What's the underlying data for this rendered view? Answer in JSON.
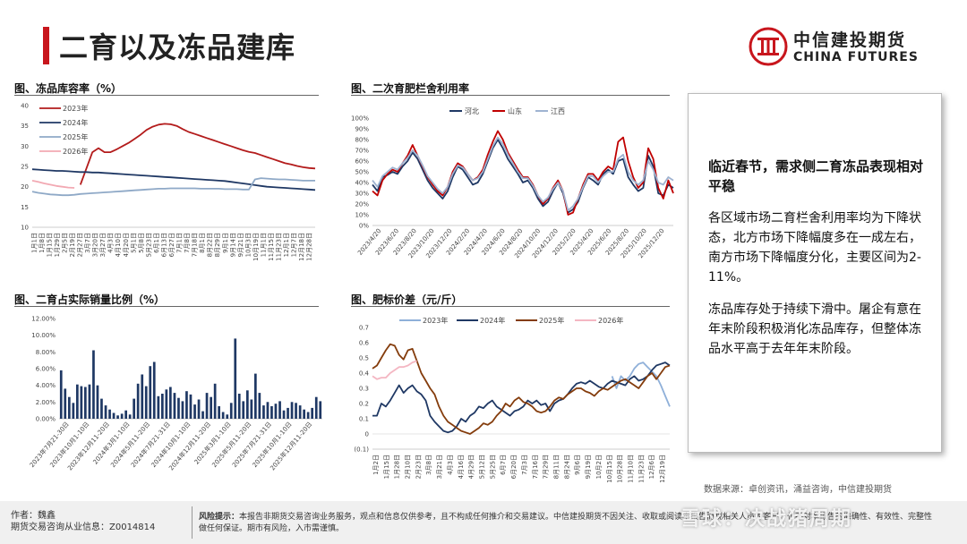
{
  "page": {
    "title": "二育以及冻品建库",
    "logo_cn": "中信建投期货",
    "logo_en": "CHINA FUTURES",
    "watermark": "雪球：决战猪周期"
  },
  "textbox": {
    "heading": "临近春节，需求侧二育冻品表现相对平稳",
    "para1": "各区域市场二育栏舍利用率均为下降状态，北方市场下降幅度多在一成左右，南方市场下降幅度分化，主要区间为2-11%。",
    "para2": "冻品库存处于持续下滑中。屠企有意在年末阶段积极消化冻品库存，但整体冻品水平高于去年年末阶段。"
  },
  "source": "数据来源：卓创资讯，涌益咨询，中信建投期货",
  "footer": {
    "author": "作者：魏鑫",
    "license": "期货交易咨询从业信息：Z0014814",
    "risk_label": "风险提示：",
    "risk_text": "本报告非期货交易咨询业务服务，观点和信息仅供参考，且不构成任何推介和交易建议。中信建投期货不因关注、收取或阅读本报告而视相关人员为客户，也不对本报告的准确性、有效性、完整性做任何保证。期市有风险，入市需谨慎。"
  },
  "colors": {
    "brand_red": "#c8161d",
    "c2023": "#b31b1b",
    "c2024": "#1f3864",
    "c2025": "#8fa9c7",
    "c2026": "#f2a9b3",
    "hebei": "#1f3864",
    "shandong": "#c00000",
    "jiangxi": "#9fb3d1",
    "bar": "#1f3864",
    "p2023": "#8fb0d9",
    "p2024": "#1f3864",
    "p2025": "#843c0c",
    "p2026": "#f4b6c2"
  },
  "chart_data": [
    {
      "id": "frozen",
      "type": "line",
      "title": "图、冻品库容率（%）",
      "ylim": [
        10,
        40
      ],
      "yticks": [
        "40",
        "35",
        "30",
        "25",
        "20",
        "15",
        "10"
      ],
      "xticks": [
        "1月1日",
        "1月8日",
        "1月15日",
        "1月29日",
        "2月5日",
        "2月19日",
        "2月27日",
        "3月7日",
        "3月20日",
        "3月27日",
        "4月3日",
        "4月10日",
        "4月20日",
        "5月1日",
        "5月8日",
        "5月23日",
        "6月1日",
        "6月13日",
        "6月27日",
        "7月1日",
        "7月8日",
        "7月18日",
        "8月1日",
        "8月22日",
        "8月29日",
        "9月1日",
        "9月14日",
        "9月21日",
        "10月3日",
        "10月19日",
        "11月1日",
        "11月15日",
        "11月23日",
        "12月1日",
        "12月7日",
        "12月18日",
        "12月28日"
      ],
      "series": [
        {
          "name": "2023年",
          "values": [
            null,
            null,
            null,
            null,
            null,
            null,
            null,
            null,
            20.5,
            24.5,
            28.5,
            29.5,
            28.5,
            28.5,
            29.2,
            30.0,
            30.8,
            31.8,
            32.8,
            34.0,
            34.8,
            35.3,
            35.5,
            35.4,
            35.0,
            34.2,
            33.5,
            33.0,
            32.5,
            32.0,
            31.5,
            31.0,
            30.5,
            30.0,
            29.5,
            29.0,
            28.6,
            28.3,
            27.8,
            27.3,
            26.8,
            26.3,
            25.8,
            25.5,
            25.1,
            24.8,
            24.6,
            24.5
          ]
        },
        {
          "name": "2024年",
          "values": [
            24.3,
            24.2,
            24.1,
            24.0,
            23.9,
            23.9,
            23.8,
            23.7,
            23.6,
            23.6,
            23.5,
            23.5,
            23.4,
            23.3,
            23.2,
            23.1,
            23.0,
            22.9,
            22.8,
            22.7,
            22.6,
            22.5,
            22.4,
            22.3,
            22.2,
            22.1,
            22.0,
            21.9,
            21.8,
            21.7,
            21.6,
            21.5,
            21.4,
            21.2,
            21.0,
            20.8,
            20.6,
            20.4,
            20.2,
            20.0,
            19.9,
            19.8,
            19.7,
            19.6,
            19.5,
            19.4,
            19.3,
            19.2
          ]
        },
        {
          "name": "2025年",
          "values": [
            18.8,
            18.5,
            18.3,
            18.1,
            18.0,
            17.9,
            17.9,
            18.0,
            18.2,
            18.3,
            18.4,
            18.5,
            18.6,
            18.7,
            18.8,
            18.9,
            19.0,
            19.1,
            19.2,
            19.3,
            19.4,
            19.5,
            19.5,
            19.6,
            19.6,
            19.6,
            19.6,
            19.6,
            19.5,
            19.5,
            19.5,
            19.5,
            19.4,
            19.4,
            19.4,
            19.3,
            19.3,
            21.8,
            22.1,
            22.0,
            21.9,
            21.8,
            21.8,
            21.7,
            21.6,
            21.5,
            21.5,
            21.5
          ]
        },
        {
          "name": "2026年",
          "values": [
            21.5,
            21.2,
            20.8,
            20.5,
            20.2,
            20.0,
            19.8,
            19.7,
            null,
            null,
            null,
            null,
            null,
            null,
            null,
            null,
            null,
            null,
            null,
            null,
            null,
            null,
            null,
            null,
            null,
            null,
            null,
            null,
            null,
            null,
            null,
            null,
            null,
            null,
            null,
            null,
            null,
            null,
            null,
            null,
            null,
            null,
            null,
            null,
            null,
            null,
            null,
            null
          ]
        }
      ]
    },
    {
      "id": "secondary",
      "type": "line",
      "title": "图、二次育肥栏舍利用率",
      "ylim": [
        0,
        100
      ],
      "yticks": [
        "100%",
        "90%",
        "80%",
        "70%",
        "60%",
        "50%",
        "40%",
        "30%",
        "20%",
        "10%",
        "0%"
      ],
      "xticks": [
        "2023/4/20",
        "2023/6/20",
        "2023/8/20",
        "2023/10/20",
        "2023/12/20",
        "2024/2/20",
        "2024/4/20",
        "2024/6/20",
        "2024/8/20",
        "2024/10/20",
        "2024/12/20",
        "2025/2/20",
        "2025/4/20",
        "2025/6/20",
        "2025/8/20",
        "2025/10/20",
        "2025/12/20"
      ],
      "series": [
        {
          "name": "河北",
          "values": [
            38,
            32,
            45,
            47,
            50,
            48,
            55,
            60,
            68,
            62,
            52,
            42,
            35,
            30,
            25,
            32,
            45,
            55,
            52,
            45,
            38,
            40,
            48,
            60,
            72,
            80,
            72,
            62,
            55,
            48,
            40,
            42,
            35,
            25,
            18,
            22,
            32,
            40,
            30,
            12,
            15,
            22,
            35,
            45,
            42,
            38,
            48,
            52,
            48,
            60,
            62,
            45,
            38,
            32,
            35,
            65,
            55,
            30,
            28,
            38,
            35
          ]
        },
        {
          "name": "山东",
          "values": [
            32,
            28,
            42,
            48,
            52,
            50,
            58,
            65,
            75,
            65,
            55,
            45,
            38,
            32,
            28,
            36,
            50,
            58,
            55,
            48,
            42,
            45,
            52,
            66,
            78,
            88,
            80,
            68,
            60,
            52,
            45,
            45,
            38,
            28,
            20,
            25,
            35,
            42,
            32,
            10,
            12,
            25,
            38,
            48,
            48,
            42,
            50,
            55,
            52,
            78,
            82,
            60,
            45,
            35,
            40,
            72,
            62,
            35,
            25,
            42,
            30
          ]
        },
        {
          "name": "江西",
          "values": [
            42,
            36,
            46,
            50,
            54,
            52,
            58,
            63,
            70,
            65,
            56,
            46,
            40,
            34,
            30,
            36,
            48,
            56,
            54,
            48,
            42,
            44,
            50,
            62,
            74,
            82,
            76,
            66,
            58,
            50,
            44,
            44,
            37,
            28,
            22,
            26,
            34,
            40,
            32,
            14,
            18,
            25,
            36,
            46,
            46,
            40,
            46,
            50,
            50,
            62,
            66,
            50,
            42,
            38,
            42,
            60,
            52,
            40,
            38,
            45,
            42
          ]
        }
      ]
    },
    {
      "id": "share",
      "type": "bar",
      "title": "图、二育占实际销量比例（%）",
      "ylim": [
        0,
        12
      ],
      "yticks": [
        "12.00%",
        "10.00%",
        "8.00%",
        "6.00%",
        "4.00%",
        "2.00%",
        "0.00%"
      ],
      "xticks": [
        "2023年7月21-30日",
        "2023年10月1-10日",
        "2023年12月11-20日",
        "2024年3月1-10日",
        "2024年5月11-20日",
        "2024年7月21-31日",
        "2024年10月1-10日",
        "2024年12月11-20日",
        "2025年3月1-10日",
        "2025年5月11-20日",
        "2025年7月21-31日",
        "2025年10月1-10日",
        "2025年12月11-20日"
      ],
      "values": [
        5.8,
        3.6,
        2.6,
        1.9,
        4.1,
        3.9,
        3.8,
        4.1,
        8.2,
        4.0,
        2.4,
        1.6,
        1.1,
        0.7,
        0.4,
        0.6,
        1.0,
        0.5,
        2.4,
        4.2,
        5.3,
        3.9,
        6.3,
        6.8,
        2.7,
        3.0,
        3.5,
        3.8,
        3.1,
        2.5,
        2.1,
        3.3,
        2.9,
        1.7,
        2.3,
        0.9,
        3.1,
        2.6,
        4.2,
        1.5,
        0.8,
        0.5,
        1.9,
        9.6,
        3.0,
        2.1,
        3.4,
        2.3,
        5.4,
        3.1,
        1.6,
        2.0,
        1.5,
        1.8,
        2.1,
        1.0,
        1.3,
        2.0,
        1.9,
        1.6,
        1.1,
        0.8,
        1.3,
        2.6,
        2.1
      ]
    },
    {
      "id": "spread",
      "type": "line",
      "title": "图、肥标价差（元/斤）",
      "ylim": [
        -0.1,
        0.7
      ],
      "yticks": [
        "0.7",
        "0.6",
        "0.5",
        "0.4",
        "0.3",
        "0.2",
        "0.1",
        "0",
        "(0.1)"
      ],
      "xticks": [
        "1月2日",
        "1月15日",
        "1月28日",
        "2月10日",
        "2月23日",
        "3月8日",
        "3月21日",
        "4月3日",
        "4月16日",
        "4月29日",
        "5月12日",
        "5月25日",
        "6月7日",
        "6月20日",
        "7月3日",
        "7月16日",
        "7月29日",
        "8月11日",
        "8月24日",
        "9月6日",
        "9月19日",
        "10月2日",
        "10月15日",
        "10月28日",
        "11月10日",
        "11月23日",
        "12月6日",
        "12月19日"
      ],
      "series": [
        {
          "name": "2023年",
          "values": [
            null,
            null,
            null,
            null,
            null,
            null,
            null,
            null,
            null,
            null,
            null,
            null,
            null,
            null,
            null,
            null,
            null,
            null,
            null,
            null,
            null,
            null,
            null,
            null,
            null,
            null,
            null,
            null,
            null,
            null,
            null,
            null,
            null,
            null,
            null,
            null,
            null,
            null,
            null,
            null,
            null,
            null,
            null,
            null,
            null,
            null,
            null,
            null,
            null,
            null,
            null,
            null,
            null,
            null,
            0.38,
            0.3,
            0.38,
            0.35,
            0.38,
            0.43,
            0.46,
            0.47,
            0.44,
            0.41,
            0.38,
            0.32,
            0.25,
            0.18
          ]
        },
        {
          "name": "2024年",
          "values": [
            0.12,
            0.12,
            0.2,
            0.18,
            0.22,
            0.27,
            0.32,
            0.27,
            0.3,
            0.32,
            0.28,
            0.26,
            0.22,
            0.12,
            0.08,
            0.05,
            0.02,
            0.01,
            0.02,
            0.05,
            0.1,
            0.08,
            0.12,
            0.14,
            0.18,
            0.17,
            0.2,
            0.22,
            0.18,
            0.16,
            0.14,
            0.12,
            0.15,
            0.16,
            0.18,
            0.22,
            0.2,
            0.22,
            0.19,
            0.2,
            0.15,
            0.2,
            0.22,
            0.23,
            0.26,
            0.3,
            0.33,
            0.34,
            0.33,
            0.35,
            0.33,
            0.31,
            0.3,
            0.33,
            0.35,
            0.34,
            0.33,
            0.32,
            0.36,
            0.38,
            0.35,
            0.36,
            0.38,
            0.42,
            0.45,
            0.46,
            0.47,
            0.45
          ]
        },
        {
          "name": "2025年",
          "values": [
            0.43,
            0.45,
            0.5,
            0.55,
            0.59,
            0.58,
            0.52,
            0.49,
            0.55,
            0.56,
            0.48,
            0.4,
            0.35,
            0.3,
            0.26,
            0.18,
            0.12,
            0.08,
            0.06,
            0.04,
            0.02,
            0.01,
            0.0,
            0.02,
            0.04,
            0.07,
            0.06,
            0.08,
            0.12,
            0.15,
            0.2,
            0.18,
            0.22,
            0.24,
            0.21,
            0.2,
            0.18,
            0.15,
            0.14,
            0.15,
            0.18,
            0.22,
            0.24,
            0.23,
            0.26,
            0.28,
            0.3,
            0.3,
            0.28,
            0.27,
            0.25,
            0.28,
            0.3,
            0.29,
            0.31,
            0.33,
            0.35,
            0.36,
            0.34,
            0.32,
            0.3,
            0.34,
            0.38,
            0.4,
            0.36,
            0.4,
            0.44,
            0.45
          ]
        },
        {
          "name": "2026年",
          "values": [
            0.38,
            0.36,
            0.37,
            0.37,
            0.4,
            0.42,
            0.44,
            0.44,
            0.45,
            0.47,
            0.48,
            null,
            null,
            null,
            null,
            null,
            null,
            null,
            null,
            null,
            null,
            null,
            null,
            null,
            null,
            null,
            null,
            null,
            null,
            null,
            null,
            null,
            null,
            null,
            null,
            null,
            null,
            null,
            null,
            null,
            null,
            null,
            null,
            null,
            null,
            null,
            null,
            null,
            null,
            null,
            null,
            null,
            null,
            null,
            null,
            null,
            null,
            null,
            null,
            null,
            null,
            null,
            null,
            null,
            null,
            null,
            null,
            null
          ]
        }
      ]
    }
  ]
}
